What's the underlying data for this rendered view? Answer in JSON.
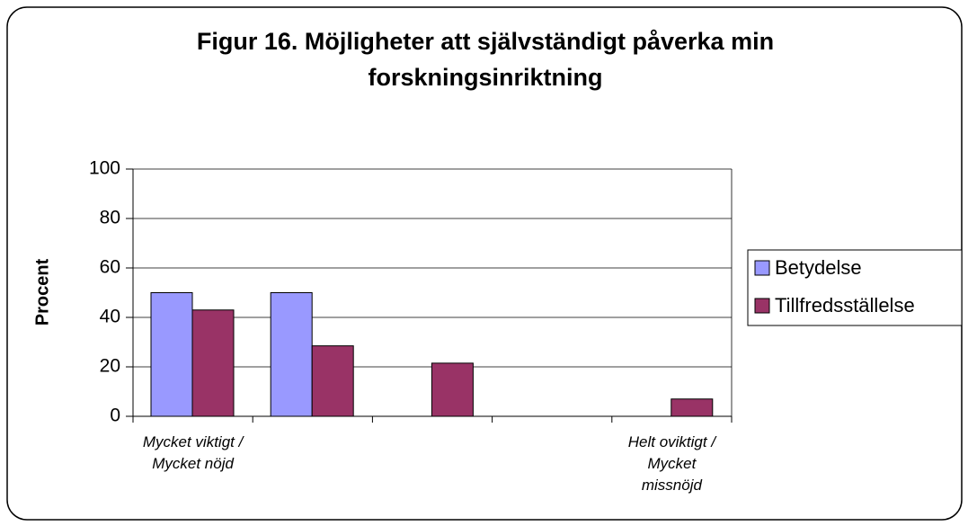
{
  "chart_data": {
    "type": "bar",
    "title": "Figur 16. Möjligheter att självständigt påverka min forskningsinriktning",
    "y_label": "Procent",
    "categories": [
      "Mycket viktigt / Mycket nöjd",
      null,
      null,
      null,
      "Helt oviktigt / Mycket missnöjd"
    ],
    "series": [
      {
        "name": "Betydelse",
        "color": "#9999ff",
        "values": [
          50,
          50,
          0,
          0,
          0
        ]
      },
      {
        "name": "Tillfredsställelse",
        "color": "#993366",
        "values": [
          43,
          28.5,
          21.5,
          0,
          7
        ]
      }
    ],
    "ylim": [
      0,
      100
    ],
    "yticks": [
      0,
      20,
      40,
      60,
      80,
      100
    ],
    "grid": true,
    "legend": "right"
  }
}
